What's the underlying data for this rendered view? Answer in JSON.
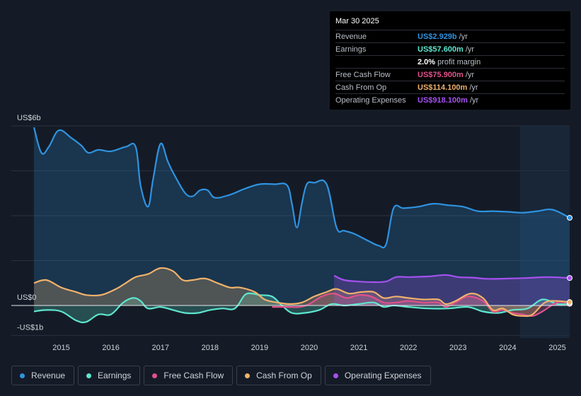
{
  "tooltip": {
    "date": "Mar 30 2025",
    "rows": [
      {
        "label": "Revenue",
        "value": "US$2.929b",
        "unit": "/yr",
        "color": "#2e93e0"
      },
      {
        "label": "Earnings",
        "value": "US$57.600m",
        "unit": "/yr",
        "color": "#5ee6cf"
      },
      {
        "label": "",
        "value": "2.0%",
        "unit": "profit margin",
        "color": "#ffffff"
      },
      {
        "label": "Free Cash Flow",
        "value": "US$75.900m",
        "unit": "/yr",
        "color": "#e0528a"
      },
      {
        "label": "Cash From Op",
        "value": "US$114.100m",
        "unit": "/yr",
        "color": "#f0b26b"
      },
      {
        "label": "Operating Expenses",
        "value": "US$918.100m",
        "unit": "/yr",
        "color": "#a651f0"
      }
    ]
  },
  "legend": [
    {
      "label": "Revenue",
      "color": "#2e93e0"
    },
    {
      "label": "Earnings",
      "color": "#5ee6cf"
    },
    {
      "label": "Free Cash Flow",
      "color": "#e0528a"
    },
    {
      "label": "Cash From Op",
      "color": "#f0b26b"
    },
    {
      "label": "Operating Expenses",
      "color": "#a651f0"
    }
  ],
  "chart_data": {
    "type": "area",
    "title": "",
    "ylim": [
      -1,
      6
    ],
    "xlim": [
      2014.45,
      2025.25
    ],
    "y_labels": [
      {
        "value": 6,
        "text": "US$6b"
      },
      {
        "value": 0,
        "text": "US$0"
      },
      {
        "value": -1,
        "text": "-US$1b"
      }
    ],
    "x_ticks": [
      {
        "value": 2015,
        "text": "2015"
      },
      {
        "value": 2016,
        "text": "2016"
      },
      {
        "value": 2017,
        "text": "2017"
      },
      {
        "value": 2018,
        "text": "2018"
      },
      {
        "value": 2019,
        "text": "2019"
      },
      {
        "value": 2020,
        "text": "2020"
      },
      {
        "value": 2021,
        "text": "2021"
      },
      {
        "value": 2022,
        "text": "2022"
      },
      {
        "value": 2023,
        "text": "2023"
      },
      {
        "value": 2024,
        "text": "2024"
      },
      {
        "value": 2025,
        "text": "2025"
      }
    ],
    "forecast_shade_start": 2024.25,
    "series": [
      {
        "name": "Revenue",
        "color": "#2e93e0",
        "x": [
          2014.45,
          2014.6,
          2014.75,
          2014.95,
          2015.2,
          2015.4,
          2015.55,
          2015.75,
          2016.0,
          2016.3,
          2016.5,
          2016.6,
          2016.75,
          2016.85,
          2017.0,
          2017.15,
          2017.3,
          2017.5,
          2017.65,
          2017.8,
          2017.95,
          2018.1,
          2018.4,
          2018.7,
          2019.0,
          2019.3,
          2019.55,
          2019.65,
          2019.75,
          2019.85,
          2019.95,
          2020.1,
          2020.35,
          2020.55,
          2020.7,
          2020.9,
          2021.2,
          2021.4,
          2021.55,
          2021.7,
          2021.9,
          2022.2,
          2022.5,
          2022.8,
          2023.1,
          2023.4,
          2023.7,
          2024.0,
          2024.3,
          2024.6,
          2024.9,
          2025.25
        ],
        "values": [
          5.95,
          5.1,
          5.3,
          5.85,
          5.6,
          5.35,
          5.1,
          5.2,
          5.15,
          5.3,
          5.3,
          4.0,
          3.3,
          4.2,
          5.4,
          4.8,
          4.3,
          3.75,
          3.65,
          3.85,
          3.85,
          3.6,
          3.7,
          3.9,
          4.05,
          4.05,
          4.02,
          3.4,
          2.6,
          3.4,
          4.05,
          4.1,
          4.05,
          2.6,
          2.5,
          2.4,
          2.15,
          2.0,
          2.05,
          3.25,
          3.25,
          3.3,
          3.4,
          3.35,
          3.3,
          3.15,
          3.15,
          3.13,
          3.1,
          3.15,
          3.2,
          2.93
        ],
        "last": 2.929
      },
      {
        "name": "Earnings",
        "color": "#5ee6cf",
        "x": [
          2014.45,
          2014.7,
          2015.0,
          2015.3,
          2015.5,
          2015.75,
          2016.0,
          2016.25,
          2016.45,
          2016.6,
          2016.75,
          2017.0,
          2017.25,
          2017.5,
          2017.75,
          2018.0,
          2018.25,
          2018.5,
          2018.7,
          2018.85,
          2019.0,
          2019.25,
          2019.45,
          2019.65,
          2019.9,
          2020.2,
          2020.45,
          2020.7,
          2021.0,
          2021.3,
          2021.5,
          2021.7,
          2022.0,
          2022.4,
          2022.8,
          2023.2,
          2023.5,
          2023.8,
          2024.1,
          2024.4,
          2024.7,
          2025.0,
          2025.25
        ],
        "values": [
          -0.2,
          -0.15,
          -0.2,
          -0.5,
          -0.55,
          -0.3,
          -0.3,
          0.1,
          0.25,
          0.15,
          -0.1,
          -0.05,
          -0.15,
          -0.25,
          -0.25,
          -0.15,
          -0.1,
          -0.1,
          0.35,
          0.4,
          0.35,
          0.3,
          0.0,
          -0.25,
          -0.25,
          -0.15,
          0.05,
          0.0,
          0.05,
          0.1,
          -0.05,
          0.0,
          -0.05,
          -0.1,
          -0.1,
          -0.05,
          -0.2,
          -0.25,
          -0.15,
          -0.1,
          0.2,
          0.05,
          0.06
        ],
        "last": 0.0576
      },
      {
        "name": "Free Cash Flow",
        "color": "#e0528a",
        "x": [
          2019.25,
          2019.5,
          2019.8,
          2020.0,
          2020.25,
          2020.5,
          2020.75,
          2021.0,
          2021.25,
          2021.5,
          2021.75,
          2022.0,
          2022.3,
          2022.6,
          2022.75,
          2022.95,
          2023.2,
          2023.5,
          2023.7,
          2023.9,
          2024.1,
          2024.3,
          2024.5,
          2024.7,
          2025.0,
          2025.25
        ],
        "values": [
          -0.05,
          -0.05,
          -0.05,
          0.05,
          0.3,
          0.4,
          0.25,
          0.35,
          0.3,
          0.1,
          0.1,
          0.15,
          0.1,
          0.1,
          -0.05,
          0.1,
          0.3,
          0.15,
          -0.2,
          -0.15,
          -0.25,
          -0.3,
          -0.35,
          -0.2,
          0.1,
          0.08
        ],
        "last": 0.0759
      },
      {
        "name": "Cash From Op",
        "color": "#f0b26b",
        "x": [
          2014.45,
          2014.7,
          2015.0,
          2015.3,
          2015.5,
          2015.8,
          2016.1,
          2016.3,
          2016.5,
          2016.75,
          2017.0,
          2017.25,
          2017.45,
          2017.65,
          2017.9,
          2018.15,
          2018.4,
          2018.6,
          2018.9,
          2019.1,
          2019.35,
          2019.6,
          2019.85,
          2020.1,
          2020.35,
          2020.55,
          2020.8,
          2021.05,
          2021.3,
          2021.5,
          2021.75,
          2022.0,
          2022.3,
          2022.6,
          2022.75,
          2022.95,
          2023.25,
          2023.5,
          2023.7,
          2023.9,
          2024.1,
          2024.3,
          2024.5,
          2024.75,
          2025.0,
          2025.25
        ],
        "values": [
          0.75,
          0.85,
          0.6,
          0.45,
          0.35,
          0.35,
          0.55,
          0.75,
          0.95,
          1.05,
          1.25,
          1.15,
          0.85,
          0.85,
          0.9,
          0.75,
          0.6,
          0.6,
          0.45,
          0.2,
          0.1,
          0.05,
          0.1,
          0.3,
          0.45,
          0.55,
          0.4,
          0.45,
          0.45,
          0.25,
          0.3,
          0.25,
          0.2,
          0.2,
          0.05,
          0.15,
          0.4,
          0.25,
          -0.15,
          -0.1,
          -0.3,
          -0.35,
          -0.3,
          0.1,
          0.15,
          0.11
        ],
        "last": 0.1141
      },
      {
        "name": "Operating Expenses",
        "color": "#a651f0",
        "x": [
          2020.5,
          2020.7,
          2021.0,
          2021.3,
          2021.55,
          2021.75,
          2022.0,
          2022.4,
          2022.75,
          2023.0,
          2023.3,
          2023.6,
          2024.0,
          2024.4,
          2024.8,
          2025.25
        ],
        "values": [
          1.0,
          0.85,
          0.8,
          0.78,
          0.8,
          0.95,
          0.95,
          0.97,
          1.02,
          0.95,
          0.93,
          0.89,
          0.9,
          0.92,
          0.95,
          0.92
        ],
        "last": 0.9181
      }
    ]
  }
}
